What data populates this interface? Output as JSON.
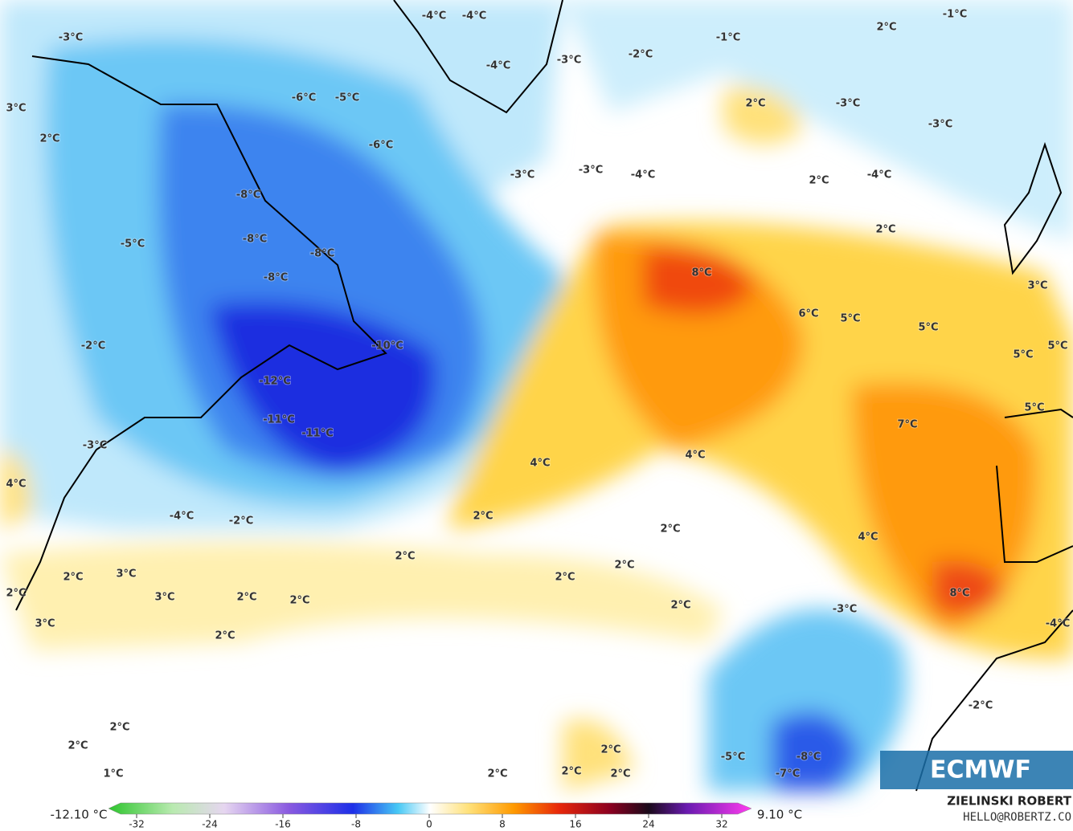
{
  "map": {
    "labels": [
      "-3°C",
      "-4°C",
      "-4°C",
      "-1°C",
      "2°C",
      "-1°C",
      "-2°C",
      "-3°C",
      "-4°C",
      "3°C",
      "-6°C",
      "-5°C",
      "2°C",
      "-3°C",
      "-3°C",
      "2°C",
      "-6°C",
      "-3°C",
      "-3°C",
      "-4°C",
      "2°C",
      "-4°C",
      "-8°C",
      "2°C",
      "-5°C",
      "-8°C",
      "-8°C",
      "-8°C",
      "8°C",
      "3°C",
      "6°C",
      "5°C",
      "5°C",
      "-2°C",
      "-10°C",
      "5°C",
      "5°C",
      "-12°C",
      "-11°C",
      "-11°C",
      "7°C",
      "5°C",
      "-3°C",
      "4°C",
      "4°C",
      "4°C",
      "2°C",
      "-4°C",
      "-2°C",
      "2°C",
      "4°C",
      "2°C",
      "2°C",
      "3°C",
      "2°C",
      "2°C",
      "2°C",
      "3°C",
      "2°C",
      "2°C",
      "8°C",
      "2°C",
      "-3°C",
      "3°C",
      "2°C",
      "-4°C",
      "-2°C",
      "2°C",
      "2°C",
      "2°C",
      "-5°C",
      "-8°C",
      "1°C",
      "2°C",
      "2°C",
      "2°C",
      "-7°C"
    ],
    "logo": "ECMWF"
  },
  "colorbar": {
    "min_label": "-12.10 °C",
    "max_label": "9.10 °C",
    "ticks": [
      -32,
      -24,
      -16,
      -8,
      0,
      8,
      16,
      24,
      32
    ]
  },
  "credits": {
    "author": "ZIELINSKI ROBERT",
    "contact": "HELLO@ROBERTZ.CO"
  }
}
